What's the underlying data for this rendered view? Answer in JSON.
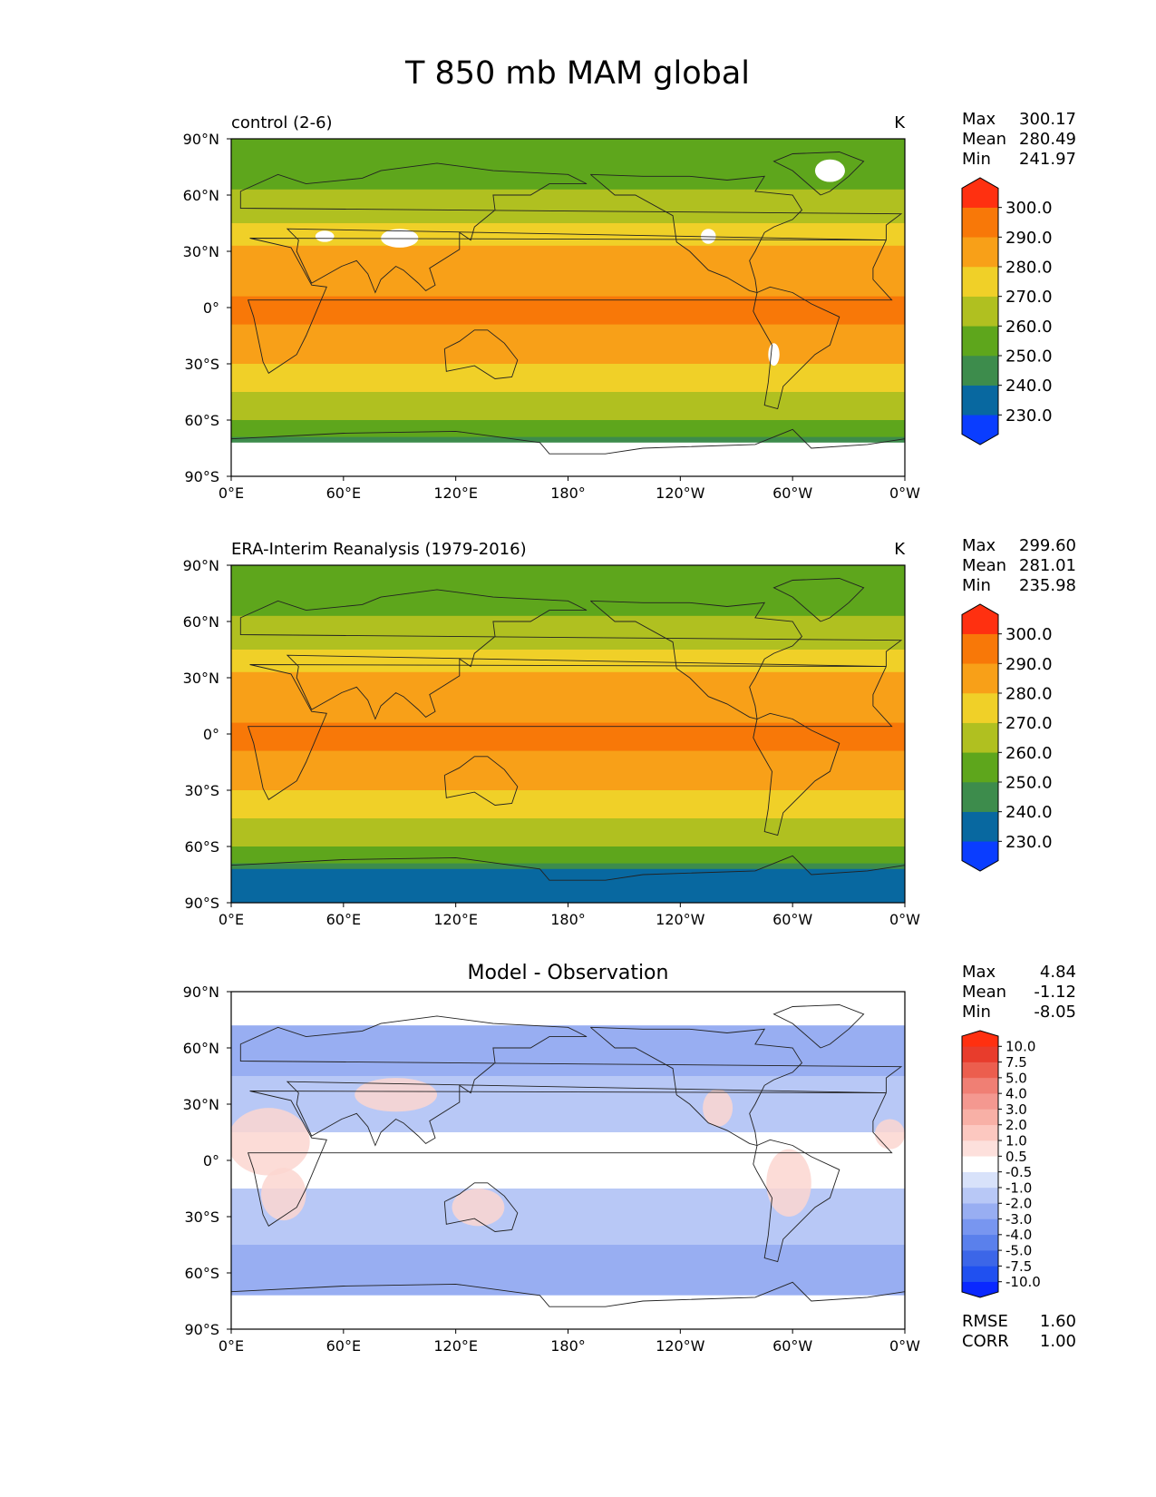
{
  "figure_title": "T 850 mb MAM global",
  "x_ticks": [
    "0°E",
    "60°E",
    "120°E",
    "180°",
    "120°W",
    "60°W",
    "0°W"
  ],
  "y_ticks": [
    "90°N",
    "60°N",
    "30°N",
    "0°",
    "30°S",
    "60°S",
    "90°S"
  ],
  "chart_data": [
    {
      "type": "heatmap",
      "title": "control (2-6)",
      "units": "K",
      "stats": {
        "max_label": "Max",
        "max": "300.17",
        "mean_label": "Mean",
        "mean": "280.49",
        "min_label": "Min",
        "min": "241.97"
      },
      "xlim": [
        0,
        360
      ],
      "ylim": [
        -90,
        90
      ],
      "colorbar": {
        "levels": [
          "230.0",
          "240.0",
          "250.0",
          "260.0",
          "270.0",
          "280.0",
          "290.0",
          "300.0"
        ],
        "colors": [
          "#0a3dff",
          "#0868a0",
          "#3d8c4c",
          "#5ea61c",
          "#b0c020",
          "#f0d028",
          "#f8a018",
          "#f87808",
          "#ff3010"
        ]
      }
    },
    {
      "type": "heatmap",
      "title": "ERA-Interim Reanalysis (1979-2016)",
      "units": "K",
      "stats": {
        "max_label": "Max",
        "max": "299.60",
        "mean_label": "Mean",
        "mean": "281.01",
        "min_label": "Min",
        "min": "235.98"
      },
      "xlim": [
        0,
        360
      ],
      "ylim": [
        -90,
        90
      ],
      "colorbar": {
        "levels": [
          "230.0",
          "240.0",
          "250.0",
          "260.0",
          "270.0",
          "280.0",
          "290.0",
          "300.0"
        ],
        "colors": [
          "#0a3dff",
          "#0868a0",
          "#3d8c4c",
          "#5ea61c",
          "#b0c020",
          "#f0d028",
          "#f8a018",
          "#f87808",
          "#ff3010"
        ]
      }
    },
    {
      "type": "heatmap",
      "title": "Model - Observation",
      "units": "",
      "stats": {
        "max_label": "Max",
        "max": "4.84",
        "mean_label": "Mean",
        "mean": "-1.12",
        "min_label": "Min",
        "min": "-8.05"
      },
      "metrics": {
        "rmse_label": "RMSE",
        "rmse": "1.60",
        "corr_label": "CORR",
        "corr": "1.00"
      },
      "xlim": [
        0,
        360
      ],
      "ylim": [
        -90,
        90
      ],
      "colorbar": {
        "levels": [
          "-10.0",
          "-7.5",
          "-5.0",
          "-4.0",
          "-3.0",
          "-2.0",
          "-1.0",
          "-0.5",
          "0.5",
          "1.0",
          "2.0",
          "3.0",
          "4.0",
          "5.0",
          "7.5",
          "10.0"
        ],
        "colors": [
          "#0a28ff",
          "#2050f0",
          "#3c66e8",
          "#5a80ec",
          "#7896f0",
          "#98aef2",
          "#b8c8f6",
          "#d8e2fa",
          "#ffffff",
          "#fde0dc",
          "#fcc8c0",
          "#f8b0a6",
          "#f49890",
          "#f07f74",
          "#ec5e4e",
          "#e83c2c",
          "#ff3010"
        ]
      }
    }
  ]
}
